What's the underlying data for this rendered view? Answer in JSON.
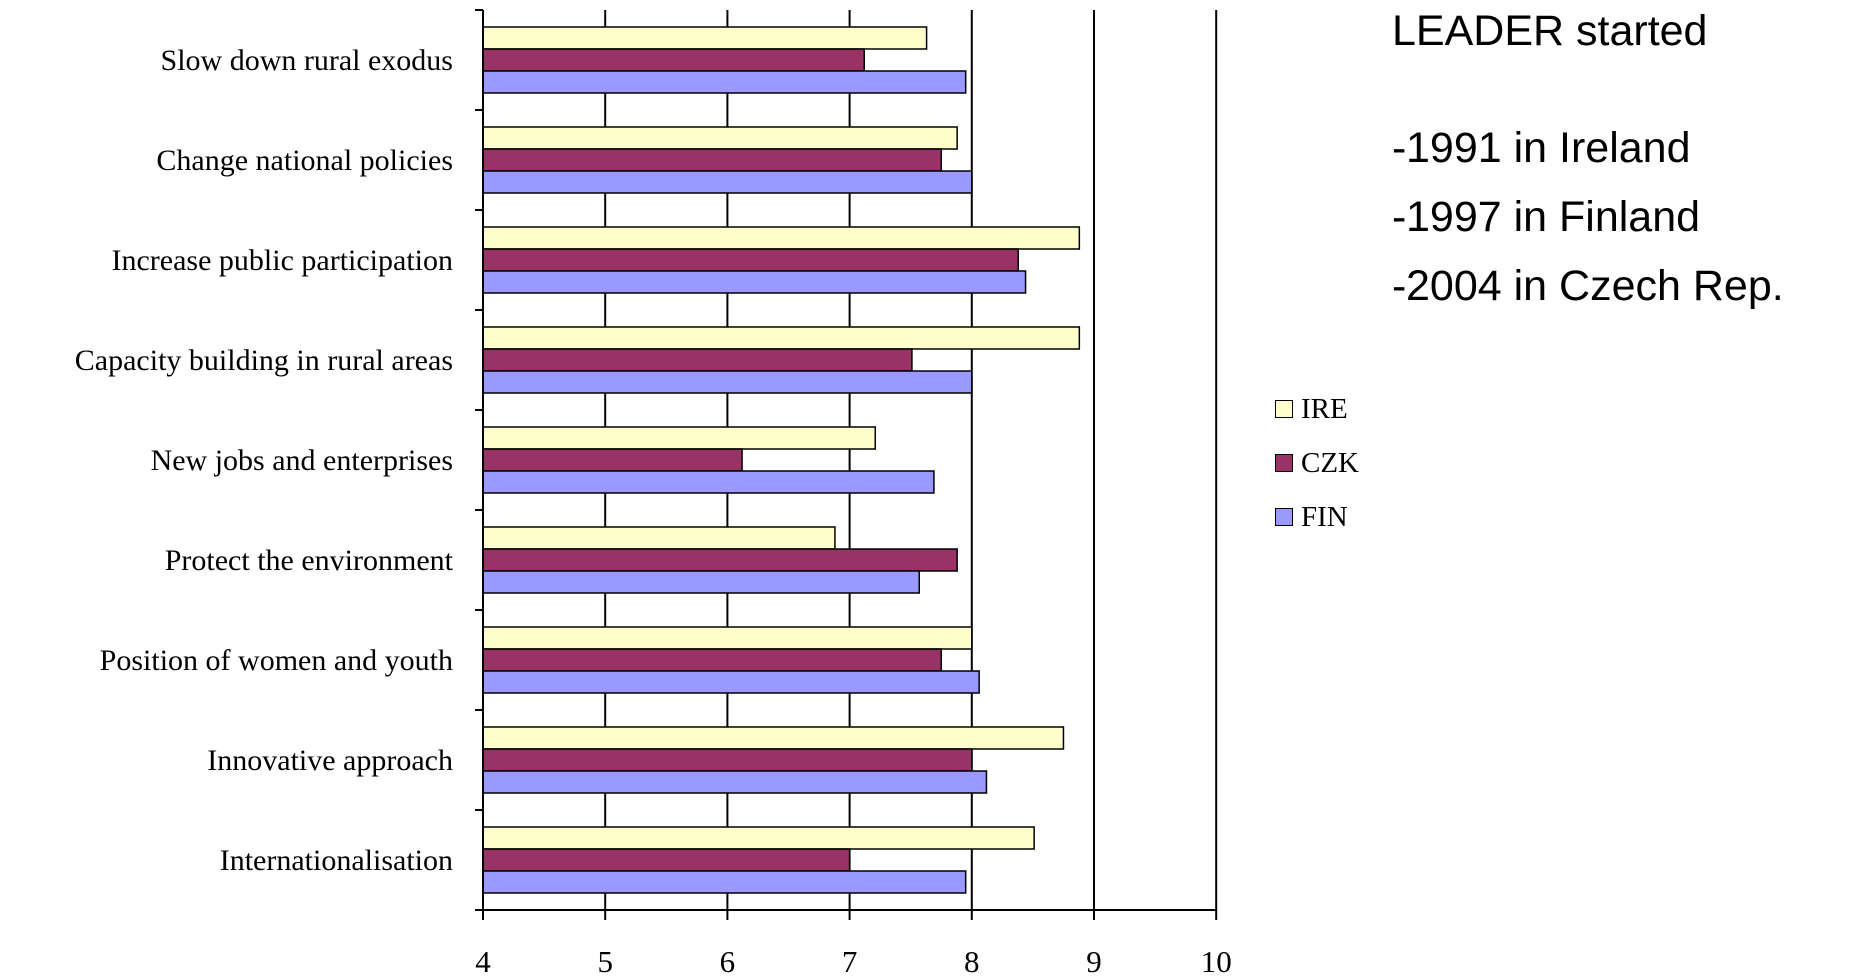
{
  "chart_data": {
    "type": "bar",
    "orientation": "horizontal",
    "categories": [
      "Slow down rural exodus",
      "Change national policies",
      "Increase public participation",
      "Capacity building in rural areas",
      "New jobs and enterprises",
      "Protect the environment",
      "Position of women and youth",
      "Innovative approach",
      "Internationalisation"
    ],
    "series": [
      {
        "name": "IRE",
        "color": "#FFFFCC",
        "values": [
          7.63,
          7.88,
          8.88,
          8.88,
          7.21,
          6.88,
          8.0,
          8.75,
          8.51
        ]
      },
      {
        "name": "CZK",
        "color": "#993366",
        "values": [
          7.12,
          7.75,
          8.38,
          7.51,
          6.12,
          7.88,
          7.75,
          8.0,
          7.0
        ]
      },
      {
        "name": "FIN",
        "color": "#9999FF",
        "values": [
          7.95,
          8.0,
          8.44,
          8.0,
          7.69,
          7.57,
          8.06,
          8.12,
          7.95
        ]
      }
    ],
    "xlim": [
      4,
      10
    ],
    "xticks": [
      "4",
      "5",
      "6",
      "7",
      "8",
      "9",
      "10"
    ],
    "grid": true,
    "legend_position": "right"
  },
  "notes": {
    "title": "LEADER started",
    "items": [
      "1991 in Ireland",
      "1997 in Finland",
      "2004 in Czech Rep."
    ],
    "bullet": "-"
  }
}
